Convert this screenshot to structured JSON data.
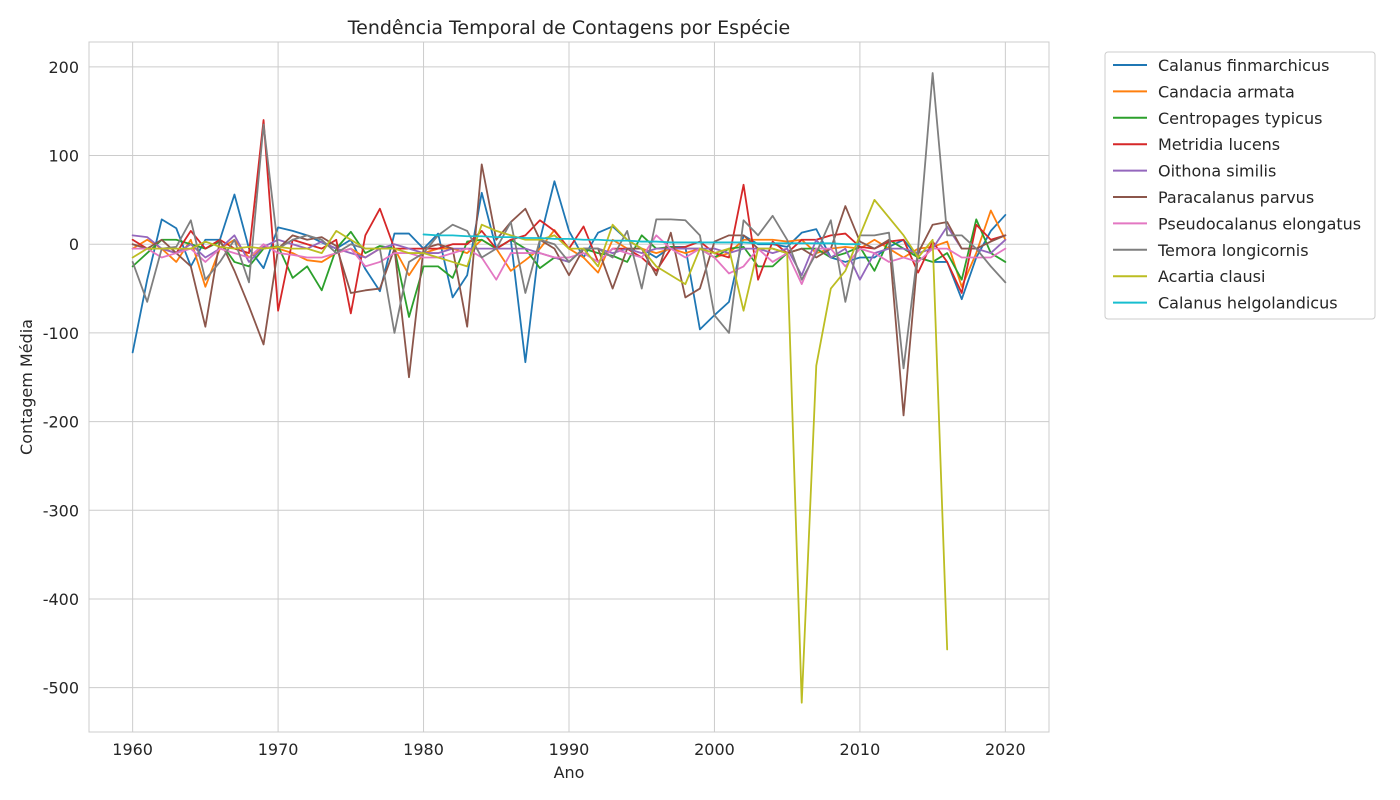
{
  "chart_data": {
    "type": "line",
    "title": "Tendência Temporal de Contagens por Espécie",
    "xlabel": "Ano",
    "ylabel": "Contagem Média",
    "xlim": [
      1957,
      2023
    ],
    "ylim": [
      -550,
      228
    ],
    "xticks": [
      1960,
      1970,
      1980,
      1990,
      2000,
      2010,
      2020
    ],
    "yticks": [
      200,
      100,
      0,
      -100,
      -200,
      -300,
      -400,
      -500
    ],
    "grid": true,
    "legend_position": "outside-top-right",
    "series": [
      {
        "name": "Calanus finmarchicus",
        "color": "#1f77b4",
        "x": [
          1960,
          1961,
          1962,
          1963,
          1964,
          1965,
          1966,
          1967,
          1968,
          1969,
          1970,
          1971,
          1972,
          1973,
          1974,
          1975,
          1976,
          1977,
          1978,
          1979,
          1980,
          1981,
          1982,
          1983,
          1984,
          1985,
          1986,
          1987,
          1988,
          1989,
          1990,
          1991,
          1992,
          1993,
          1994,
          1995,
          1996,
          1997,
          1998,
          1999,
          2000,
          2001,
          2002,
          2003,
          2004,
          2005,
          2006,
          2007,
          2008,
          2009,
          2010,
          2011,
          2012,
          2013,
          2014,
          2015,
          2016,
          2017,
          2018,
          2019,
          2020
        ],
        "y": [
          -122,
          -40,
          28,
          18,
          -25,
          5,
          5,
          56,
          -5,
          -27,
          19,
          15,
          10,
          2,
          -5,
          5,
          -28,
          -53,
          12,
          12,
          -5,
          12,
          -60,
          -35,
          58,
          -5,
          5,
          -133,
          5,
          71,
          15,
          -15,
          13,
          20,
          5,
          -5,
          -15,
          -3,
          -3,
          -96,
          -80,
          -65,
          10,
          0,
          0,
          -3,
          13,
          17,
          -15,
          -20,
          -15,
          -15,
          -3,
          5,
          -15,
          -20,
          -20,
          -62,
          -15,
          15,
          33
        ]
      },
      {
        "name": "Candacia armata",
        "color": "#ff7f0e",
        "x": [
          1960,
          1961,
          1962,
          1963,
          1964,
          1965,
          1966,
          1967,
          1968,
          1969,
          1970,
          1971,
          1972,
          1973,
          1974,
          1975,
          1976,
          1977,
          1978,
          1979,
          1980,
          1981,
          1982,
          1983,
          1984,
          1985,
          1986,
          1987,
          1988,
          1989,
          1990,
          1991,
          1992,
          1993,
          1994,
          1995,
          1996,
          1997,
          1998,
          1999,
          2000,
          2001,
          2002,
          2003,
          2004,
          2005,
          2006,
          2007,
          2008,
          2009,
          2010,
          2011,
          2012,
          2013,
          2014,
          2015,
          2016,
          2017,
          2018,
          2019,
          2020
        ],
        "y": [
          -5,
          5,
          -5,
          -20,
          5,
          -48,
          -5,
          5,
          -15,
          -3,
          -5,
          -10,
          -18,
          -20,
          -10,
          -5,
          -15,
          -5,
          -5,
          -35,
          -10,
          -5,
          -5,
          -10,
          5,
          -5,
          -30,
          -18,
          -5,
          16,
          -5,
          -15,
          -32,
          5,
          -5,
          -5,
          -10,
          -5,
          -10,
          -5,
          -15,
          -10,
          5,
          5,
          5,
          3,
          5,
          -10,
          -5,
          -3,
          -5,
          5,
          -5,
          -15,
          -5,
          -3,
          3,
          -48,
          -10,
          38,
          5
        ]
      },
      {
        "name": "Centropages typicus",
        "color": "#2ca02c",
        "x": [
          1960,
          1961,
          1962,
          1963,
          1964,
          1965,
          1966,
          1967,
          1968,
          1969,
          1970,
          1971,
          1972,
          1973,
          1974,
          1975,
          1976,
          1977,
          1978,
          1979,
          1980,
          1981,
          1982,
          1983,
          1984,
          1985,
          1986,
          1987,
          1988,
          1989,
          1990,
          1991,
          1992,
          1993,
          1994,
          1995,
          1996,
          1997,
          1998,
          1999,
          2000,
          2001,
          2002,
          2003,
          2004,
          2005,
          2006,
          2007,
          2008,
          2009,
          2010,
          2011,
          2012,
          2013,
          2014,
          2015,
          2016,
          2017,
          2018,
          2019,
          2020
        ],
        "y": [
          -25,
          -10,
          5,
          5,
          0,
          -5,
          3,
          -20,
          -25,
          -5,
          -2,
          -38,
          -25,
          -52,
          -5,
          14,
          -10,
          -2,
          -5,
          -82,
          -25,
          -25,
          -38,
          3,
          5,
          -5,
          5,
          -5,
          -27,
          -15,
          -20,
          -5,
          -10,
          -13,
          -20,
          10,
          -5,
          -3,
          -5,
          -5,
          -15,
          -5,
          -3,
          -25,
          -25,
          -10,
          -5,
          -5,
          -15,
          -10,
          -3,
          -30,
          5,
          -5,
          -15,
          -20,
          -10,
          -40,
          28,
          -10,
          -20
        ]
      },
      {
        "name": "Metridia lucens",
        "color": "#d62728",
        "x": [
          1960,
          1961,
          1962,
          1963,
          1964,
          1965,
          1966,
          1967,
          1968,
          1969,
          1970,
          1971,
          1972,
          1973,
          1974,
          1975,
          1976,
          1977,
          1978,
          1979,
          1980,
          1981,
          1982,
          1983,
          1984,
          1985,
          1986,
          1987,
          1988,
          1989,
          1990,
          1991,
          1992,
          1993,
          1994,
          1995,
          1996,
          1997,
          1998,
          1999,
          2000,
          2001,
          2002,
          2003,
          2004,
          2005,
          2006,
          2007,
          2008,
          2009,
          2010,
          2011,
          2012,
          2013,
          2014,
          2015,
          2016,
          2017,
          2018,
          2019,
          2020
        ],
        "y": [
          5,
          -5,
          -5,
          -10,
          15,
          -5,
          5,
          -5,
          -10,
          140,
          -75,
          5,
          0,
          -5,
          5,
          -78,
          10,
          40,
          -5,
          -5,
          -5,
          -5,
          0,
          0,
          15,
          -5,
          5,
          10,
          27,
          15,
          -5,
          20,
          -20,
          -5,
          -5,
          -15,
          -30,
          -5,
          -3,
          3,
          -10,
          -15,
          67,
          -40,
          3,
          -10,
          5,
          5,
          10,
          12,
          -3,
          -5,
          3,
          5,
          -32,
          3,
          -20,
          -55,
          22,
          5,
          10
        ]
      },
      {
        "name": "Oithona similis",
        "color": "#9467bd",
        "x": [
          1960,
          1961,
          1962,
          1963,
          1964,
          1965,
          1966,
          1967,
          1968,
          1969,
          1970,
          1971,
          1972,
          1973,
          1974,
          1975,
          1976,
          1977,
          1978,
          1979,
          1980,
          1981,
          1982,
          1983,
          1984,
          1985,
          1986,
          1987,
          1988,
          1989,
          1990,
          1991,
          1992,
          1993,
          1994,
          1995,
          1996,
          1997,
          1998,
          1999,
          2000,
          2001,
          2002,
          2003,
          2004,
          2005,
          2006,
          2007,
          2008,
          2009,
          2010,
          2011,
          2012,
          2013,
          2014,
          2015,
          2016,
          2017,
          2018,
          2019,
          2020
        ],
        "y": [
          10,
          8,
          -5,
          -10,
          0,
          -15,
          -5,
          10,
          -20,
          -3,
          5,
          0,
          -5,
          3,
          -5,
          -10,
          -15,
          -5,
          0,
          -5,
          -10,
          -10,
          -5,
          -5,
          -5,
          -5,
          -5,
          -5,
          -10,
          -15,
          -20,
          -5,
          -5,
          -10,
          -5,
          -10,
          -5,
          -5,
          -5,
          -5,
          -5,
          -10,
          -5,
          -5,
          -10,
          -5,
          -35,
          5,
          -15,
          -5,
          -40,
          -10,
          -5,
          -5,
          -10,
          -5,
          20,
          -5,
          -5,
          -10,
          5
        ]
      },
      {
        "name": "Paracalanus parvus",
        "color": "#8c564b",
        "x": [
          1960,
          1961,
          1962,
          1963,
          1964,
          1965,
          1966,
          1967,
          1968,
          1969,
          1970,
          1971,
          1972,
          1973,
          1974,
          1975,
          1976,
          1977,
          1978,
          1979,
          1980,
          1981,
          1982,
          1983,
          1984,
          1985,
          1986,
          1987,
          1988,
          1989,
          1990,
          1991,
          1992,
          1993,
          1994,
          1995,
          1996,
          1997,
          1998,
          1999,
          2000,
          2001,
          2002,
          2003,
          2004,
          2005,
          2006,
          2007,
          2008,
          2009,
          2010,
          2011,
          2012,
          2013,
          2014,
          2015,
          2016,
          2017,
          2018,
          2019,
          2020
        ],
        "y": [
          0,
          -5,
          5,
          -10,
          -25,
          -93,
          5,
          -30,
          -70,
          -113,
          -5,
          10,
          5,
          8,
          -2,
          -55,
          -52,
          -50,
          -5,
          -150,
          -5,
          0,
          -5,
          -93,
          90,
          5,
          25,
          40,
          5,
          -5,
          -35,
          -5,
          -5,
          -50,
          -5,
          -5,
          -35,
          13,
          -60,
          -50,
          3,
          10,
          10,
          -5,
          -5,
          -10,
          -5,
          -15,
          -5,
          43,
          3,
          -5,
          5,
          -193,
          -10,
          22,
          25,
          -5,
          -5,
          3,
          10
        ]
      },
      {
        "name": "Pseudocalanus elongatus",
        "color": "#e377c2",
        "x": [
          1960,
          1961,
          1962,
          1963,
          1964,
          1965,
          1966,
          1967,
          1968,
          1969,
          1970,
          1971,
          1972,
          1973,
          1974,
          1975,
          1976,
          1977,
          1978,
          1979,
          1980,
          1981,
          1982,
          1983,
          1984,
          1985,
          1986,
          1987,
          1988,
          1989,
          1990,
          1991,
          1992,
          1993,
          1994,
          1995,
          1996,
          1997,
          1998,
          1999,
          2000,
          2001,
          2002,
          2003,
          2004,
          2005,
          2006,
          2007,
          2008,
          2009,
          2010,
          2011,
          2012,
          2013,
          2014,
          2015,
          2016,
          2017,
          2018,
          2019,
          2020
        ],
        "y": [
          -5,
          -5,
          -15,
          -10,
          -5,
          -20,
          -5,
          -10,
          -15,
          0,
          -10,
          -12,
          -15,
          -15,
          -10,
          -5,
          -25,
          -20,
          -10,
          -10,
          -15,
          -15,
          -10,
          -5,
          -15,
          -40,
          -10,
          -10,
          -10,
          -15,
          -15,
          -10,
          -20,
          -5,
          -10,
          -15,
          10,
          -5,
          -15,
          -5,
          -15,
          -33,
          -25,
          -5,
          -20,
          -10,
          -45,
          -5,
          -5,
          -25,
          -5,
          -10,
          -20,
          -15,
          -20,
          -5,
          -5,
          -15,
          -15,
          -15,
          -5
        ]
      },
      {
        "name": "Temora longicornis",
        "color": "#7f7f7f",
        "x": [
          1960,
          1961,
          1962,
          1963,
          1964,
          1965,
          1966,
          1967,
          1968,
          1969,
          1970,
          1971,
          1972,
          1973,
          1974,
          1975,
          1976,
          1977,
          1978,
          1979,
          1980,
          1981,
          1982,
          1983,
          1984,
          1985,
          1986,
          1987,
          1988,
          1989,
          1990,
          1991,
          1992,
          1993,
          1994,
          1995,
          1996,
          1997,
          1998,
          1999,
          2000,
          2001,
          2002,
          2003,
          2004,
          2005,
          2006,
          2007,
          2008,
          2009,
          2010,
          2011,
          2012,
          2013,
          2014,
          2015,
          2016,
          2017,
          2018,
          2019,
          2020
        ],
        "y": [
          -20,
          -65,
          -5,
          -3,
          27,
          -40,
          -20,
          5,
          -43,
          135,
          -5,
          5,
          10,
          5,
          -10,
          0,
          -5,
          -5,
          -100,
          -20,
          -10,
          10,
          22,
          15,
          -15,
          -5,
          25,
          -55,
          5,
          0,
          -20,
          -5,
          -5,
          -15,
          15,
          -50,
          28,
          28,
          27,
          10,
          -80,
          -100,
          27,
          10,
          32,
          5,
          -40,
          -10,
          27,
          -65,
          10,
          10,
          13,
          -140,
          -5,
          193,
          10,
          10,
          -5,
          -25,
          -43
        ]
      },
      {
        "name": "Acartia clausi",
        "color": "#bcbd22",
        "x": [
          1960,
          1961,
          1962,
          1963,
          1964,
          1965,
          1966,
          1967,
          1968,
          1969,
          1970,
          1971,
          1972,
          1973,
          1974,
          1975,
          1976,
          1977,
          1978,
          1979,
          1980,
          1981,
          1982,
          1983,
          1984,
          1985,
          1986,
          1987,
          1988,
          1989,
          1990,
          1991,
          1992,
          1993,
          1994,
          1995,
          1996,
          1997,
          1998,
          1999,
          2000,
          2001,
          2002,
          2003,
          2004,
          2005,
          2006,
          2007,
          2008,
          2009,
          2010,
          2011,
          2012,
          2013,
          2014,
          2015,
          2016
        ],
        "y": [
          -15,
          -5,
          -5,
          -5,
          -5,
          3,
          -3,
          -5,
          -3,
          -5,
          -3,
          -5,
          -5,
          -10,
          15,
          5,
          -5,
          -5,
          -5,
          -10,
          -10,
          -15,
          -20,
          -25,
          22,
          15,
          10,
          5,
          5,
          10,
          -5,
          -5,
          -25,
          22,
          5,
          -5,
          -25,
          -35,
          -45,
          -5,
          -10,
          -5,
          -75,
          -5,
          -5,
          -10,
          -517,
          -137,
          -50,
          -30,
          10,
          50,
          30,
          10,
          -15,
          5,
          -457
        ]
      },
      {
        "name": "Calanus helgolandicus",
        "color": "#17becf",
        "x": [
          1980,
          1981,
          1982,
          1983,
          1984,
          1985,
          1986,
          1987,
          1988,
          1989,
          1990,
          1991,
          1992,
          1993,
          1994,
          1995,
          1996,
          1997,
          1998,
          1999,
          2000,
          2001,
          2002,
          2003,
          2004,
          2005,
          2006,
          2007,
          2008,
          2009,
          2010
        ],
        "y": [
          11,
          10,
          10,
          9,
          9,
          8,
          8,
          7,
          7,
          6,
          6,
          5,
          5,
          4,
          4,
          3,
          3,
          2,
          2,
          2,
          2,
          2,
          2,
          1,
          1,
          1,
          1,
          1,
          1,
          0,
          0
        ]
      }
    ]
  }
}
